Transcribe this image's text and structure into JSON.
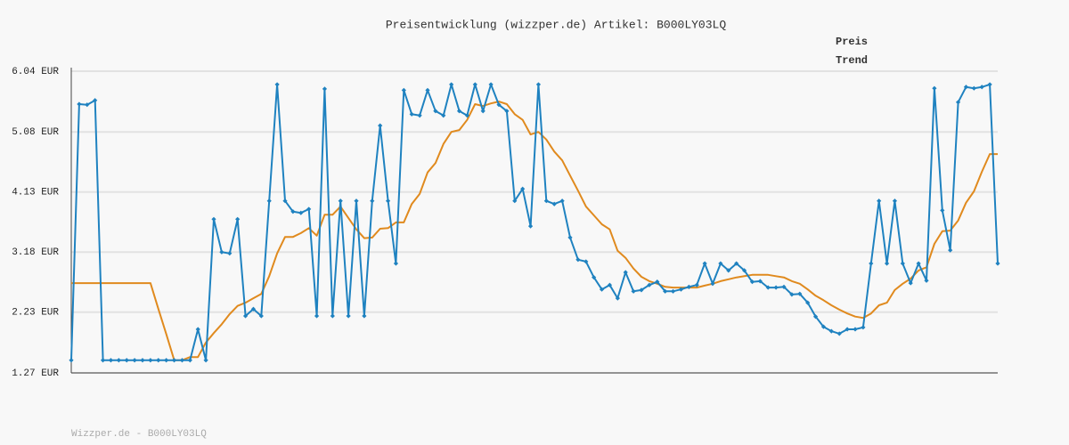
{
  "chart_data": {
    "type": "line",
    "title": "Preisentwicklung (wizzper.de) Artikel: B000LY03LQ",
    "footer": "Wizzper.de - B000LY03LQ",
    "ylim": [
      1.27,
      6.04
    ],
    "yticks": [
      {
        "value": 1.27,
        "label": "1.27 EUR"
      },
      {
        "value": 2.23,
        "label": "2.23 EUR"
      },
      {
        "value": 3.18,
        "label": "3.18 EUR"
      },
      {
        "value": 4.13,
        "label": "4.13 EUR"
      },
      {
        "value": 5.08,
        "label": "5.08 EUR"
      },
      {
        "value": 6.04,
        "label": "6.04 EUR"
      }
    ],
    "grid": true,
    "legend": "top-right",
    "series": [
      {
        "name": "Preis",
        "color": "#1f82c0",
        "markers": true,
        "values": [
          1.47,
          5.52,
          5.51,
          5.58,
          1.47,
          1.47,
          1.47,
          1.47,
          1.47,
          1.47,
          1.47,
          1.47,
          1.47,
          1.47,
          1.47,
          1.47,
          1.96,
          1.47,
          3.7,
          3.18,
          3.16,
          3.7,
          2.17,
          2.28,
          2.17,
          3.99,
          5.83,
          3.99,
          3.82,
          3.8,
          3.86,
          2.17,
          5.76,
          2.17,
          3.99,
          2.17,
          3.99,
          2.17,
          3.99,
          5.18,
          3.99,
          3.0,
          5.74,
          5.36,
          5.34,
          5.74,
          5.41,
          5.34,
          5.83,
          5.41,
          5.34,
          5.83,
          5.41,
          5.83,
          5.51,
          5.41,
          3.99,
          4.18,
          3.59,
          5.83,
          3.99,
          3.94,
          3.99,
          3.41,
          3.06,
          3.03,
          2.78,
          2.59,
          2.66,
          2.45,
          2.86,
          2.56,
          2.58,
          2.66,
          2.71,
          2.56,
          2.56,
          2.59,
          2.63,
          2.66,
          3.0,
          2.68,
          3.0,
          2.89,
          3.0,
          2.89,
          2.71,
          2.72,
          2.62,
          2.62,
          2.63,
          2.51,
          2.52,
          2.38,
          2.16,
          2.0,
          1.93,
          1.89,
          1.96,
          1.96,
          1.99,
          3.0,
          3.99,
          3.0,
          3.99,
          3.0,
          2.69,
          3.0,
          2.73,
          5.77,
          3.84,
          3.21,
          5.55,
          5.79,
          5.77,
          5.79,
          5.83,
          3.0
        ]
      },
      {
        "name": "Trend",
        "color": "#e08a1e",
        "markers": false,
        "values": [
          2.69,
          2.69,
          2.69,
          2.69,
          2.69,
          2.69,
          2.69,
          2.69,
          2.69,
          2.69,
          2.69,
          2.28,
          1.88,
          1.47,
          1.47,
          1.52,
          1.52,
          1.75,
          1.9,
          2.04,
          2.2,
          2.33,
          2.38,
          2.45,
          2.52,
          2.8,
          3.16,
          3.42,
          3.42,
          3.48,
          3.56,
          3.44,
          3.77,
          3.77,
          3.9,
          3.72,
          3.54,
          3.4,
          3.41,
          3.55,
          3.56,
          3.65,
          3.65,
          3.94,
          4.1,
          4.44,
          4.59,
          4.89,
          5.08,
          5.11,
          5.27,
          5.52,
          5.49,
          5.53,
          5.56,
          5.52,
          5.36,
          5.27,
          5.04,
          5.08,
          4.96,
          4.77,
          4.63,
          4.39,
          4.15,
          3.9,
          3.76,
          3.62,
          3.54,
          3.2,
          3.09,
          2.92,
          2.79,
          2.72,
          2.68,
          2.63,
          2.62,
          2.62,
          2.62,
          2.62,
          2.65,
          2.68,
          2.72,
          2.75,
          2.78,
          2.8,
          2.82,
          2.82,
          2.82,
          2.8,
          2.78,
          2.72,
          2.68,
          2.59,
          2.49,
          2.42,
          2.34,
          2.27,
          2.21,
          2.16,
          2.14,
          2.21,
          2.34,
          2.38,
          2.58,
          2.68,
          2.76,
          2.89,
          2.94,
          3.31,
          3.51,
          3.52,
          3.68,
          3.96,
          4.14,
          4.45,
          4.73,
          4.73
        ]
      }
    ]
  }
}
